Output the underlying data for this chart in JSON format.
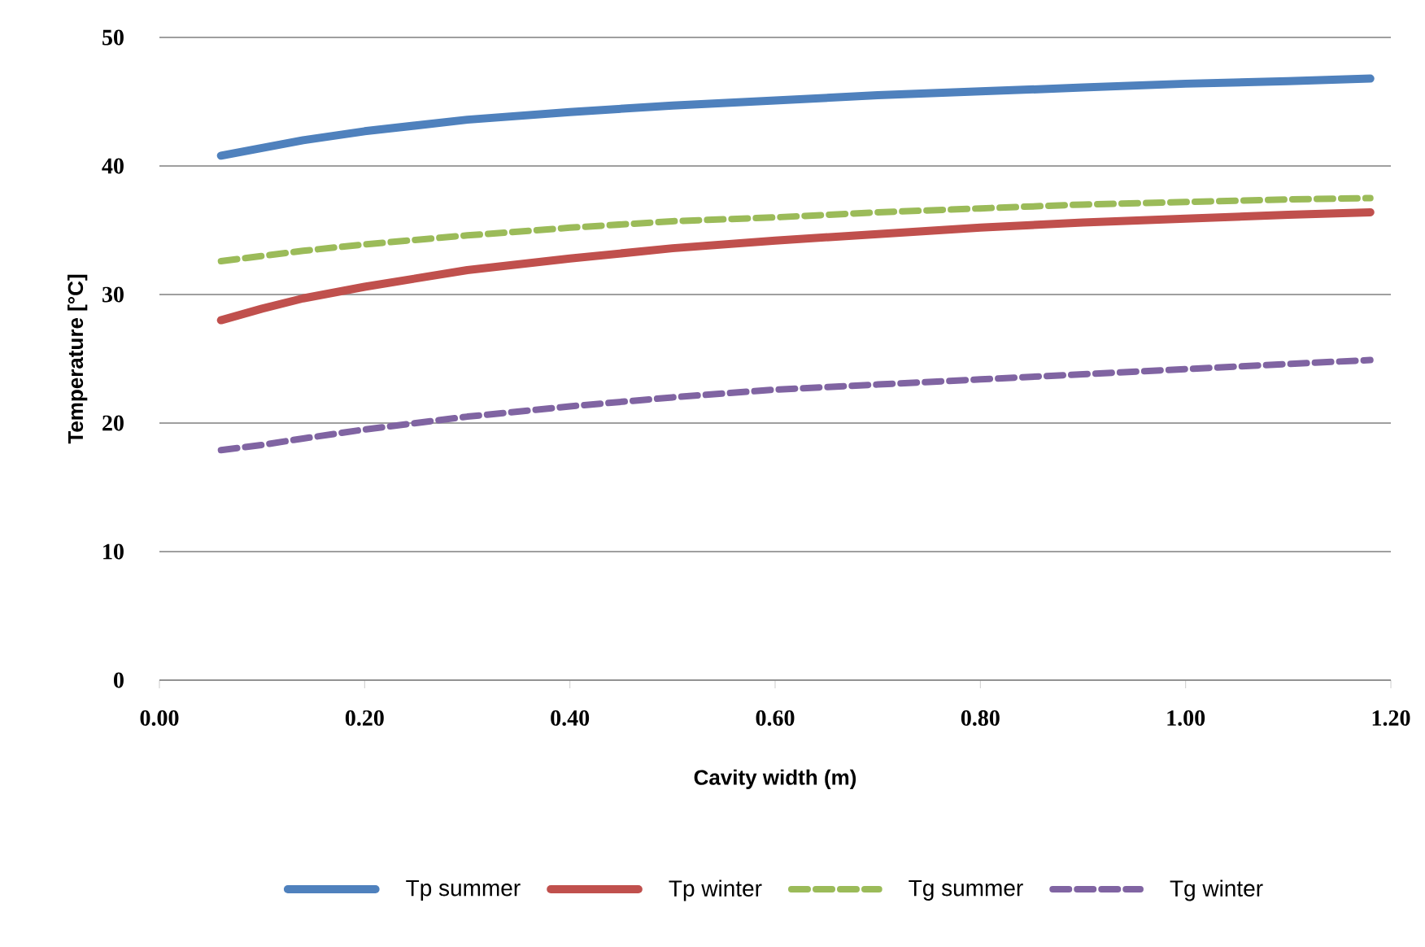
{
  "chart_data": {
    "type": "line",
    "xlabel": "Cavity width (m)",
    "ylabel": "Temperature [°C]",
    "x": [
      0.06,
      0.1,
      0.14,
      0.2,
      0.3,
      0.4,
      0.5,
      0.6,
      0.7,
      0.8,
      0.9,
      1.0,
      1.1,
      1.18
    ],
    "series": [
      {
        "name": "Tp summer",
        "color": "#4f81bd",
        "line_style": "solid",
        "values": [
          40.8,
          41.4,
          42.0,
          42.7,
          43.6,
          44.2,
          44.7,
          45.1,
          45.5,
          45.8,
          46.1,
          46.4,
          46.6,
          46.8
        ]
      },
      {
        "name": "Tp winter",
        "color": "#c0504d",
        "line_style": "solid",
        "values": [
          28.0,
          28.9,
          29.7,
          30.6,
          31.9,
          32.8,
          33.6,
          34.2,
          34.7,
          35.2,
          35.6,
          35.9,
          36.2,
          36.4
        ]
      },
      {
        "name": "Tg summer",
        "color": "#9bbb59",
        "line_style": "dashed",
        "values": [
          32.6,
          33.0,
          33.4,
          33.9,
          34.6,
          35.2,
          35.7,
          36.0,
          36.4,
          36.7,
          37.0,
          37.2,
          37.4,
          37.5
        ]
      },
      {
        "name": "Tg winter",
        "color": "#8064a2",
        "line_style": "dashed",
        "values": [
          17.9,
          18.3,
          18.8,
          19.5,
          20.5,
          21.3,
          22.0,
          22.6,
          23.0,
          23.4,
          23.8,
          24.2,
          24.6,
          24.9
        ]
      }
    ],
    "xlim": [
      0,
      1.2
    ],
    "xticks": [
      {
        "value": 0,
        "label": "0.00"
      },
      {
        "value": 0.2,
        "label": "0.20"
      },
      {
        "value": 0.4,
        "label": "0.40"
      },
      {
        "value": 0.6,
        "label": "0.60"
      },
      {
        "value": 0.8,
        "label": "0.80"
      },
      {
        "value": 1.0,
        "label": "1.00"
      },
      {
        "value": 1.2,
        "label": "1.20"
      }
    ],
    "ylim": [
      0,
      50
    ],
    "yticks": [
      0,
      10,
      20,
      30,
      40,
      50
    ],
    "grid": "y",
    "legend": "bottom",
    "marker": "none"
  }
}
